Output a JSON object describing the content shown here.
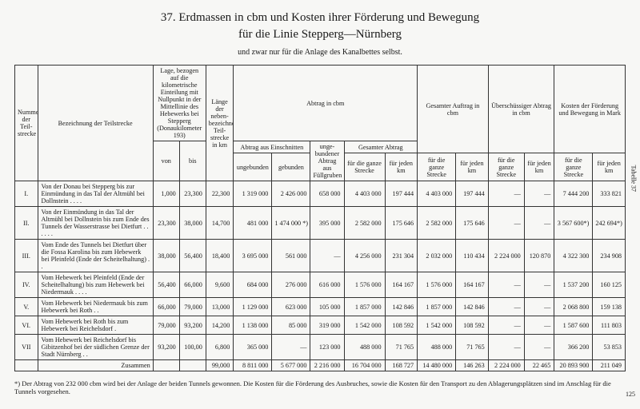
{
  "title_line1": "37.  Erdmassen in cbm und Kosten ihrer Förderung und Bewegung",
  "title_line2": "für die Linie Stepperg—Nürnberg",
  "note": "und zwar nur für die Anlage des Kanalbettes selbst.",
  "headers": {
    "col_num": "Nummer der Teil-strecke",
    "col_desc": "Bezeichnung der Teilstrecke",
    "col_lage": "Lage, bezogen auf die kilometrische Einteilung mit Nullpunkt in der Mittellinie des Hebewerks bei Stepperg (Donaukilometer 193)",
    "col_len": "Länge der neben-bezeichneten Teil-strecke in km",
    "col_abtrag": "Abtrag in cbm",
    "col_gauftrag": "Gesamter Auftrag in cbm",
    "col_uber": "Überschüssiger Abtrag in cbm",
    "col_kosten": "Kosten der Förderung und Bewegung in Mark",
    "von": "von",
    "bis": "bis",
    "abtrag_einschn": "Abtrag aus Einschnitten",
    "ungebundener": "unge-bundener Abtrag aus Füllgruben",
    "gesamt_abtrag": "Gesamter Abtrag",
    "ungeb": "ungebunden",
    "geb": "gebunden",
    "ganze": "für die ganze Strecke",
    "jedkm": "für jeden km"
  },
  "rows": [
    {
      "n": "I.",
      "desc": "Von der Donau bei Stepperg bis zur Einmündung in das Tal der Altmühl bei Dollnstein . . . .",
      "von": "1,000",
      "bis": "23,300",
      "len": "22,300",
      "c1": "1 319 000",
      "c2": "2 426 000",
      "c3": "658 000",
      "c4": "4 403 000",
      "c5": "197 444",
      "c6": "4 403 000",
      "c7": "197 444",
      "c8": "—",
      "c9": "—",
      "c10": "7 444 200",
      "c11": "333 821"
    },
    {
      "n": "II.",
      "desc": "Von der Einmündung in das Tal der Altmühl bei Dollnstein bis zum Ende des Tunnels der Wasserstrasse bei Dietfurt . . . . . .",
      "von": "23,300",
      "bis": "38,000",
      "len": "14,700",
      "c1": "481 000",
      "c2": "1 474 000 *) 232 000",
      "c3": "395 000",
      "c4": "2 582 000",
      "c5": "175 646",
      "c6": "2 582 000",
      "c7": "175 646",
      "c8": "—",
      "c9": "—",
      "c10": "3 567 600*)",
      "c11": "242 694*)"
    },
    {
      "n": "III.",
      "desc": "Vom Ende des Tunnels bei Dietfurt über die Fossa Karolina bis zum Hebewerk bei Pleinfeld (Ende der Scheitelhaltung) . .",
      "von": "38,000",
      "bis": "56,400",
      "len": "18,400",
      "c1": "3 695 000",
      "c2": "561 000",
      "c3": "—",
      "c4": "4 256 000",
      "c5": "231 304",
      "c6": "2 032 000",
      "c7": "110 434",
      "c8": "2 224 000",
      "c9": "120 870",
      "c10": "4 322 300",
      "c11": "234 908"
    },
    {
      "n": "IV.",
      "desc": "Vom Hebewerk bei Pleinfeld (Ende der Scheitelhaltung) bis zum Hebewerk bei Niedermauk . . . .",
      "von": "56,400",
      "bis": "66,000",
      "len": "9,600",
      "c1": "684 000",
      "c2": "276 000",
      "c3": "616 000",
      "c4": "1 576 000",
      "c5": "164 167",
      "c6": "1 576 000",
      "c7": "164 167",
      "c8": "—",
      "c9": "—",
      "c10": "1 537 200",
      "c11": "160 125"
    },
    {
      "n": "V.",
      "desc": "Vom Hebewerk bei Niedermauk bis zum Hebewerk bei Roth . .",
      "von": "66,000",
      "bis": "79,000",
      "len": "13,000",
      "c1": "1 129 000",
      "c2": "623 000",
      "c3": "105 000",
      "c4": "1 857 000",
      "c5": "142 846",
      "c6": "1 857 000",
      "c7": "142 846",
      "c8": "—",
      "c9": "—",
      "c10": "2 068 800",
      "c11": "159 138"
    },
    {
      "n": "VI.",
      "desc": "Vom Hebewerk bei Roth bis zum Hebewerk bei Reichelsdorf  .",
      "von": "79,000",
      "bis": "93,200",
      "len": "14,200",
      "c1": "1 138 000",
      "c2": "85 000",
      "c3": "319 000",
      "c4": "1 542 000",
      "c5": "108 592",
      "c6": "1 542 000",
      "c7": "108 592",
      "c8": "—",
      "c9": "—",
      "c10": "1 587 600",
      "c11": "111 803"
    },
    {
      "n": "VII",
      "desc": "Vom Hebewerk bei Reichelsdorf bis Gibitzenhof bei der südlichen Grenze der Stadt Nürnberg . .",
      "von": "93,200",
      "bis": "100,00",
      "len": "6,800",
      "c1": "365 000",
      "c2": "—",
      "c3": "123 000",
      "c4": "488 000",
      "c5": "71 765",
      "c6": "488 000",
      "c7": "71 765",
      "c8": "—",
      "c9": "—",
      "c10": "366 200",
      "c11": "53 853"
    }
  ],
  "sum": {
    "label": "Zusammen",
    "len": "99,000",
    "c1": "8 811 000",
    "c2": "5 677 000",
    "c3": "2 216 000",
    "c4": "16 704 000",
    "c5": "168 727",
    "c6": "14 480 000",
    "c7": "146 263",
    "c8": "2 224 000",
    "c9": "22 465",
    "c10": "20 893 900",
    "c11": "211 049"
  },
  "footnote": "*) Der Abtrag von 232 000 cbm wird bei der Anlage der beiden Tunnels gewonnen.  Die Kosten für die Förderung des Ausbruches, sowie die Kosten für den Transport zu den Ablagerungsplätzen sind im Anschlag für die Tunnels vorgesehen.",
  "side_label": "Tabelle 37",
  "page_num": "125",
  "colwidths_pct": [
    3.8,
    19.2,
    4.4,
    4.4,
    4.6,
    6.4,
    6.4,
    5.6,
    6.8,
    5.4,
    6.4,
    5.4,
    6.0,
    5.0,
    6.4,
    5.4
  ]
}
